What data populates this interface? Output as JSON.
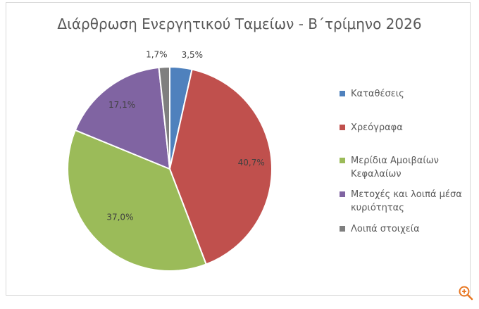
{
  "chart_data": {
    "type": "pie",
    "title": "Διάρθρωση Ενεργητικού Ταμείων - Β΄τρίμηνο 2026",
    "categories": [
      "Καταθέσεις",
      "Χρεόγραφα",
      "Μερίδια Αμοιβαίων Κεφαλαίων",
      "Μετοχές και λοιπά μέσα κυριότητας",
      "Λοιπά στοιχεία"
    ],
    "values": [
      3.5,
      40.7,
      37.0,
      17.1,
      1.7
    ],
    "value_labels": [
      "3,5%",
      "40,7%",
      "37,0%",
      "17,1%",
      "1,7%"
    ],
    "colors": [
      "#4f81bd",
      "#c0504d",
      "#9bbb59",
      "#8064a2",
      "#7f7f7f"
    ],
    "legend_position": "right"
  },
  "legend": [
    {
      "label": "Καταθέσεις",
      "color": "#4f81bd"
    },
    {
      "label": "Χρεόγραφα",
      "color": "#c0504d"
    },
    {
      "label": "Μερίδια Αμοιβαίων Κεφαλαίων",
      "color": "#9bbb59"
    },
    {
      "label": "Μετοχές και λοιπά μέσα κυριότητας",
      "color": "#8064a2"
    },
    {
      "label": "Λοιπά στοιχεία",
      "color": "#7f7f7f"
    }
  ],
  "zoom": {
    "icon": "zoom-in-icon"
  }
}
